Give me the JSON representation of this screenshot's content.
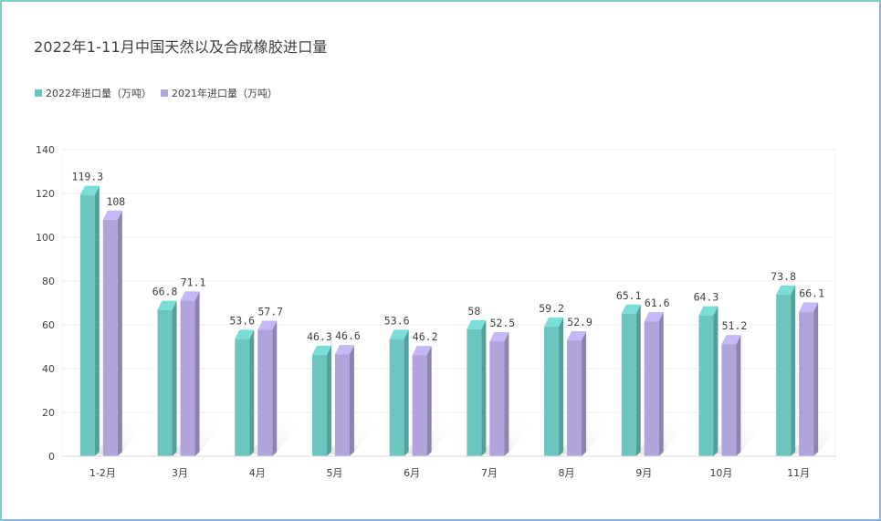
{
  "chart_data": {
    "type": "bar",
    "title": "2022年1-11月中国天然以及合成橡胶进口量",
    "categories": [
      "1-2月",
      "3月",
      "4月",
      "5月",
      "6月",
      "7月",
      "8月",
      "9月",
      "10月",
      "11月"
    ],
    "series": [
      {
        "name": "2022年进口量（万吨）",
        "color": "#6cc6c0",
        "values": [
          119.3,
          66.8,
          53.6,
          46.3,
          53.6,
          58,
          59.2,
          65.1,
          64.3,
          73.8
        ],
        "labels": [
          "119.3",
          "66.8",
          "53.6",
          "46.3",
          "53.6",
          "58",
          "59.2",
          "65.1",
          "64.3",
          "73.8"
        ]
      },
      {
        "name": "2021年进口量（万吨）",
        "color": "#b1a4dc",
        "values": [
          108,
          71.1,
          57.7,
          46.6,
          46.2,
          52.5,
          52.9,
          61.6,
          51.2,
          66.1
        ],
        "labels": [
          "108",
          "71.1",
          "57.7",
          "46.6",
          "46.2",
          "52.5",
          "52.9",
          "61.6",
          "51.2",
          "66.1"
        ]
      }
    ],
    "ylim": [
      0,
      140
    ],
    "yticks": [
      "0",
      "20",
      "40",
      "60",
      "80",
      "100",
      "120",
      "140"
    ],
    "grid": true,
    "legend_position": "top-left"
  }
}
